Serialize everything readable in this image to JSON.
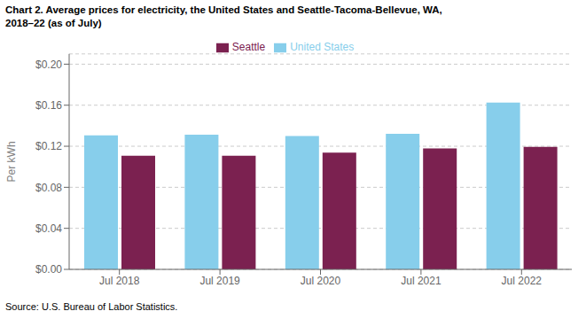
{
  "chart_data": {
    "type": "bar",
    "title": "Chart 2. Average prices for electricity, the United States and Seattle-Tacoma-Bellevue, WA,\n2018–22 (as of July)",
    "ylabel": "Per kWh",
    "annotations": [
      "Source: U.S. Bureau of Labor Statistics."
    ],
    "categories": [
      "Jul 2018",
      "Jul 2019",
      "Jul 2020",
      "Jul 2021",
      "Jul 2022"
    ],
    "series": [
      {
        "name": "United States",
        "color": "#87CEEB",
        "values": [
          0.1307,
          0.1313,
          0.1299,
          0.1322,
          0.1626
        ]
      },
      {
        "name": "Seattle",
        "color": "#7B2150",
        "values": [
          0.1107,
          0.1107,
          0.1138,
          0.1178,
          0.1193
        ]
      }
    ],
    "ylim": [
      0,
      0.21
    ],
    "yticks": [
      {
        "value": 0,
        "label": "$0.00"
      },
      {
        "value": 0.04,
        "label": "$0.04"
      },
      {
        "value": 0.08,
        "label": "$0.08"
      },
      {
        "value": 0.12,
        "label": "$0.12"
      },
      {
        "value": 0.16,
        "label": "$0.16"
      },
      {
        "value": 0.2,
        "label": "$0.20"
      }
    ],
    "grid": true,
    "legend": "top"
  }
}
